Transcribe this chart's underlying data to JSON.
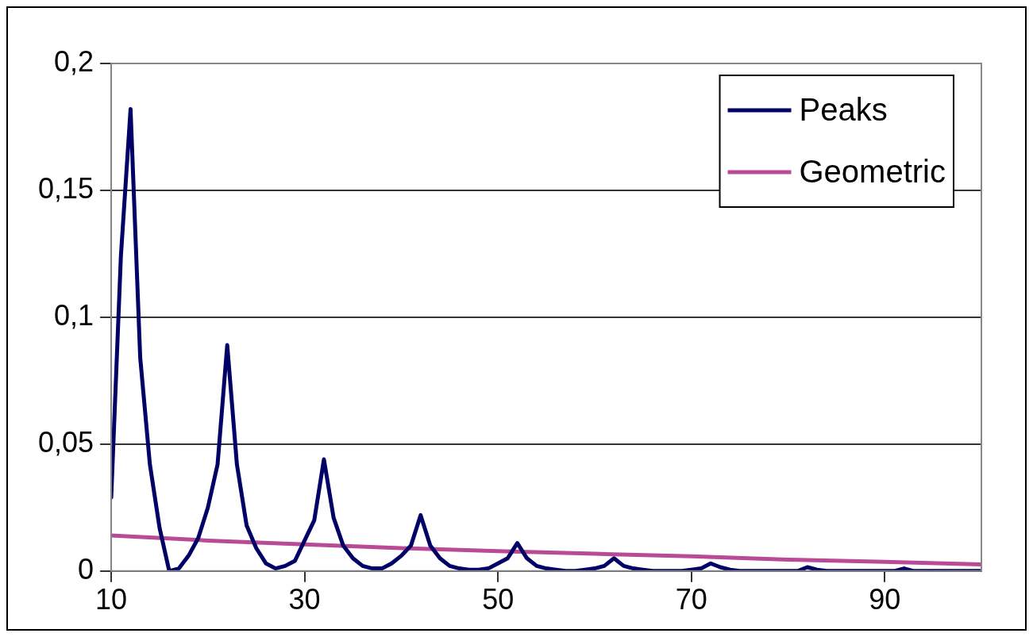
{
  "chart_data": {
    "type": "line",
    "x": [
      10,
      11,
      12,
      13,
      14,
      15,
      16,
      17,
      18,
      19,
      20,
      21,
      22,
      23,
      24,
      25,
      26,
      27,
      28,
      29,
      30,
      31,
      32,
      33,
      34,
      35,
      36,
      37,
      38,
      39,
      40,
      41,
      42,
      43,
      44,
      45,
      46,
      47,
      48,
      49,
      50,
      51,
      52,
      53,
      54,
      55,
      56,
      57,
      58,
      59,
      60,
      61,
      62,
      63,
      64,
      65,
      66,
      67,
      68,
      69,
      70,
      71,
      72,
      73,
      74,
      75,
      76,
      77,
      78,
      79,
      80,
      81,
      82,
      83,
      84,
      85,
      86,
      87,
      88,
      89,
      90,
      91,
      92,
      93,
      94,
      95,
      96,
      97,
      98,
      99,
      100
    ],
    "series": [
      {
        "name": "Peaks",
        "color": "#000066",
        "values": [
          0.029,
          0.124,
          0.182,
          0.084,
          0.042,
          0.017,
          0,
          0.001,
          0.006,
          0.013,
          0.025,
          0.042,
          0.089,
          0.042,
          0.018,
          0.009,
          0.003,
          0.001,
          0.002,
          0.004,
          0.012,
          0.02,
          0.044,
          0.021,
          0.01,
          0.005,
          0.002,
          0.001,
          0.001,
          0.003,
          0.006,
          0.01,
          0.022,
          0.01,
          0.005,
          0.002,
          0.001,
          0.0005,
          0.0005,
          0.001,
          0.003,
          0.005,
          0.011,
          0.005,
          0.002,
          0.001,
          0.0005,
          0,
          0,
          0.0005,
          0.001,
          0.002,
          0.005,
          0.002,
          0.001,
          0.0005,
          0,
          0,
          0,
          0,
          0.0005,
          0.001,
          0.003,
          0.0015,
          0.0005,
          0,
          0,
          0,
          0,
          0,
          0,
          0,
          0.0015,
          0.0005,
          0,
          0,
          0,
          0,
          0,
          0,
          0,
          0,
          0.001,
          0,
          0,
          0,
          0,
          0,
          0,
          0,
          0
        ]
      },
      {
        "name": "Geometric",
        "color": "#b94a96",
        "x": [
          10,
          20,
          30,
          40,
          50,
          60,
          70,
          80,
          90,
          100
        ],
        "values": [
          0.014,
          0.012,
          0.0105,
          0.009,
          0.0078,
          0.0068,
          0.0058,
          0.0045,
          0.0036,
          0.0026
        ]
      }
    ],
    "xlim": [
      10,
      100
    ],
    "xticks": [
      10,
      30,
      50,
      70,
      90
    ],
    "ylim": [
      0,
      0.2
    ],
    "yticks": [
      {
        "value": 0,
        "label": "0"
      },
      {
        "value": 0.05,
        "label": "0,05"
      },
      {
        "value": 0.1,
        "label": "0,1"
      },
      {
        "value": 0.15,
        "label": "0,15"
      },
      {
        "value": 0.2,
        "label": "0,2"
      }
    ],
    "grid": "y",
    "legend": "top right",
    "marker": "none",
    "line_style": "solid"
  }
}
